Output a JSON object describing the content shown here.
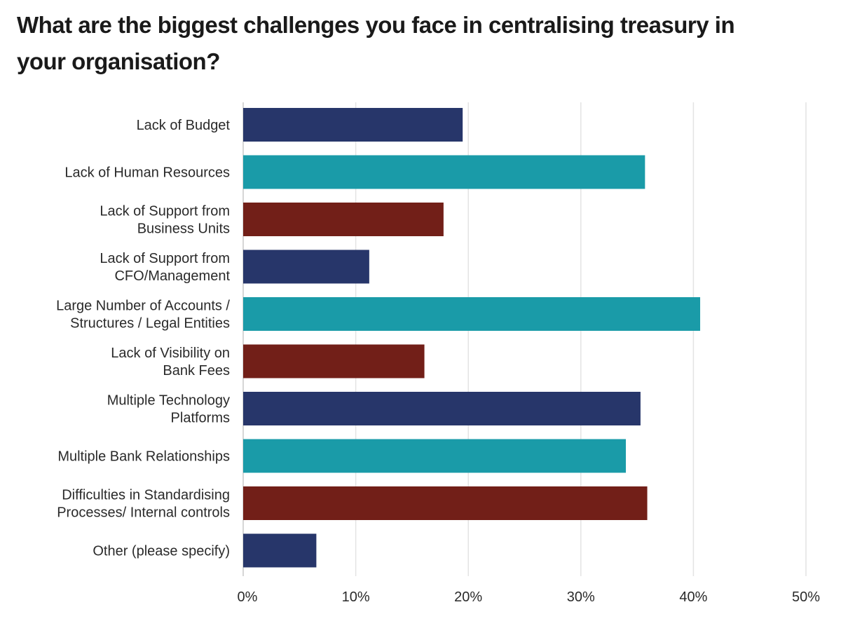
{
  "chart_data": {
    "type": "bar",
    "orientation": "horizontal",
    "title": "What are the biggest challenges you face in centralising treasury in your organisation?",
    "categories": [
      [
        "Lack of Budget"
      ],
      [
        "Lack of Human Resources"
      ],
      [
        "Lack of Support from",
        "Business Units"
      ],
      [
        "Lack of Support from",
        "CFO/Management"
      ],
      [
        "Large Number of Accounts /",
        "Structures / Legal Entities"
      ],
      [
        "Lack of Visibility on",
        "Bank Fees"
      ],
      [
        "Multiple Technology",
        "Platforms"
      ],
      [
        "Multiple Bank Relationships"
      ],
      [
        "Difficulties in Standardising",
        "Processes/ Internal controls"
      ],
      [
        "Other (please specify)"
      ]
    ],
    "values": [
      19.5,
      35.7,
      17.8,
      11.2,
      40.6,
      16.1,
      35.3,
      34.0,
      35.9,
      6.5
    ],
    "colors": [
      "#27366a",
      "#1a9ba8",
      "#721f18",
      "#27366a",
      "#1a9ba8",
      "#721f18",
      "#27366a",
      "#1a9ba8",
      "#721f18",
      "#27366a"
    ],
    "xlim": [
      0,
      50
    ],
    "ticks": [
      0,
      10,
      20,
      30,
      40,
      50
    ],
    "tick_labels": [
      "0%",
      "10%",
      "20%",
      "30%",
      "40%",
      "50%"
    ],
    "grid": true,
    "legend": "none"
  }
}
